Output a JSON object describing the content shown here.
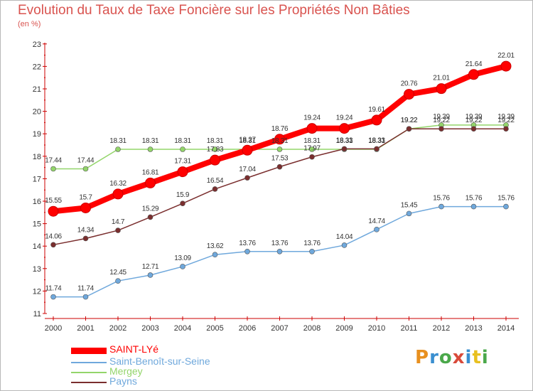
{
  "title": "Evolution du Taux de Taxe Foncière sur les Propriétés Non Bâties",
  "subtitle": "(en %)",
  "chart_data": {
    "type": "line",
    "x": [
      "2000",
      "2001",
      "2002",
      "2003",
      "2004",
      "2005",
      "2006",
      "2007",
      "2008",
      "2009",
      "2010",
      "2011",
      "2012",
      "2013",
      "2014"
    ],
    "ylim": [
      11,
      23
    ],
    "yticks": [
      11,
      12,
      13,
      14,
      15,
      16,
      17,
      18,
      19,
      20,
      21,
      22,
      23
    ],
    "grid": false,
    "legend_position": "bottom-left",
    "series": [
      {
        "name": "SAINT-LYé",
        "color": "#ff0000",
        "values": [
          15.55,
          15.7,
          16.32,
          16.81,
          17.31,
          17.83,
          18.27,
          18.76,
          19.24,
          19.24,
          19.61,
          20.76,
          21.01,
          21.64,
          22.01
        ],
        "labels": [
          "15.55",
          "15.7",
          "16.32",
          "16.81",
          "17.31",
          "17.83",
          "18.27",
          "18.76",
          "19.24",
          "19.24",
          "19.61",
          "20.76",
          "21.01",
          "21.64",
          "22.01"
        ]
      },
      {
        "name": "Saint-Benoît-sur-Seine",
        "color": "#6fa8dc",
        "values": [
          11.74,
          11.74,
          12.45,
          12.71,
          13.09,
          13.62,
          13.76,
          13.76,
          13.76,
          14.04,
          14.74,
          15.45,
          15.76,
          15.76,
          15.76
        ],
        "labels": [
          "11.74",
          "11.74",
          "12.45",
          "12.71",
          "13.09",
          "13.62",
          "13.76",
          "13.76",
          "13.76",
          "14.04",
          "14.74",
          "15.45",
          "15.76",
          "15.76",
          "15.76"
        ]
      },
      {
        "name": "Mergey",
        "color": "#93d56a",
        "values": [
          17.44,
          17.44,
          18.31,
          18.31,
          18.31,
          18.31,
          18.31,
          18.31,
          18.31,
          18.31,
          18.31,
          19.22,
          19.39,
          19.39,
          19.39
        ],
        "labels": [
          "17.44",
          "17.44",
          "18.31",
          "18.31",
          "18.31",
          "18.31",
          "18.31",
          "18.31",
          "18.31",
          "18.31",
          "18.31",
          "19.22",
          "19.39",
          "19.39",
          "19.39"
        ]
      },
      {
        "name": "Payns",
        "color": "#7a2e2e",
        "values": [
          14.06,
          14.34,
          14.7,
          15.29,
          15.9,
          16.54,
          17.04,
          17.53,
          17.97,
          18.33,
          18.33,
          19.22,
          19.22,
          19.22,
          19.22
        ],
        "labels": [
          "14.06",
          "14.34",
          "14.7",
          "15.29",
          "15.9",
          "16.54",
          "17.04",
          "17.53",
          "17.97",
          "18.33",
          "18.33",
          "19.22",
          "19.22",
          "19.22",
          "19.22"
        ]
      }
    ]
  },
  "logo": {
    "text": "Proxiti",
    "colors": [
      "#e8901f",
      "#3a8fd0",
      "#4aa84a",
      "#d94a3a",
      "#3a8fd0",
      "#e8c020",
      "#4aa84a"
    ]
  }
}
